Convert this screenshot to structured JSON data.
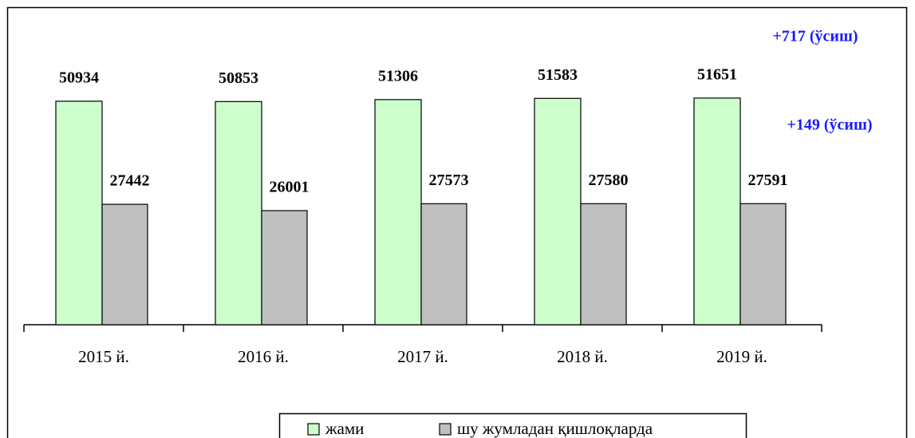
{
  "chart_data": {
    "type": "bar",
    "categories": [
      "2015 й.",
      "2016 й.",
      "2017 й.",
      "2018 й.",
      "2019 й."
    ],
    "series": [
      {
        "name": "жами",
        "color": "#ccffcc",
        "values": [
          50934,
          50853,
          51306,
          51583,
          51651
        ]
      },
      {
        "name": "шу жумладан қишлоқларда",
        "color": "#c0c0c0",
        "values": [
          27442,
          26001,
          27573,
          27580,
          27591
        ]
      }
    ],
    "ylim": [
      0,
      60000
    ],
    "annotations": [
      "+717 (ўсиш)",
      "+149 (ўсиш)"
    ],
    "legend": "bottom"
  }
}
